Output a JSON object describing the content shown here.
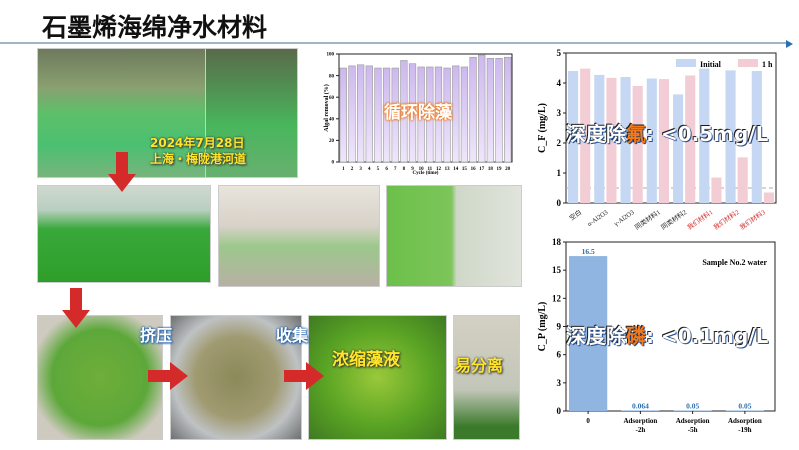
{
  "title": "石墨烯海绵净水材料",
  "photos": {
    "date": "2024年7月28日",
    "location": "上海・梅陇港河道",
    "squeeze": "挤压",
    "collect": "收集",
    "concentrate": "浓缩藻液",
    "separate": "易分离"
  },
  "colors": {
    "algae_bar": "#d6c6f0",
    "initial": "#c5d7f2",
    "one_h": "#f2cdd6",
    "p_bar": "#8fb5e0",
    "accent_red": "#d42a2a"
  },
  "overlays": {
    "algae": "循环除藻",
    "fluoride_prefix": "深度除",
    "fluoride_hl": "氟",
    "fluoride_suffix": ": <0.5mg/L",
    "phosphorus_prefix": "深度除",
    "phosphorus_hl": "磷",
    "phosphorus_suffix": ": <0.1mg/L"
  },
  "chart_data": [
    {
      "type": "bar",
      "xlabel": "Cycle (time)",
      "ylabel": "Algal removal (%)",
      "ylim": [
        0,
        100
      ],
      "yticks": [
        0,
        20,
        40,
        60,
        80,
        100
      ],
      "categories": [
        "1",
        "2",
        "3",
        "4",
        "5",
        "6",
        "7",
        "8",
        "9",
        "10",
        "11",
        "12",
        "13",
        "14",
        "15",
        "16",
        "17",
        "18",
        "19",
        "20"
      ],
      "values": [
        87,
        89,
        90,
        89,
        87,
        87,
        87,
        94,
        91,
        88,
        88,
        88,
        87,
        89,
        88,
        97,
        99,
        96,
        96,
        97
      ]
    },
    {
      "type": "bar",
      "ylabel": "C_F (mg/L)",
      "ylim": [
        0,
        5
      ],
      "yticks": [
        0,
        1,
        2,
        3,
        4,
        5
      ],
      "legend": "top-right",
      "reference_line": 0.5,
      "categories": [
        "空白",
        "α-Al2O3",
        "γ-Al2O3",
        "同类材料1",
        "同类材料2",
        "我们材料1",
        "我们材料2",
        "我们材料3"
      ],
      "series": [
        {
          "name": "Initial",
          "values": [
            4.4,
            4.27,
            4.2,
            4.15,
            3.62,
            4.48,
            4.42,
            4.4
          ]
        },
        {
          "name": "1 h",
          "values": [
            4.48,
            4.17,
            3.9,
            4.13,
            4.25,
            0.85,
            1.52,
            0.35
          ]
        }
      ]
    },
    {
      "type": "bar",
      "ylabel": "C_P (mg/L)",
      "ylim": [
        0,
        18
      ],
      "yticks": [
        0,
        3,
        6,
        9,
        12,
        15,
        18
      ],
      "annotation": "Sample No.2 water",
      "categories": [
        "0",
        "Adsorption -2h",
        "Adsorption -5h",
        "Adsorption -19h"
      ],
      "values": [
        16.5,
        0.064,
        0.05,
        0.05
      ],
      "labels": [
        "16.5",
        "0.064",
        "0.05",
        "0.05"
      ]
    }
  ]
}
